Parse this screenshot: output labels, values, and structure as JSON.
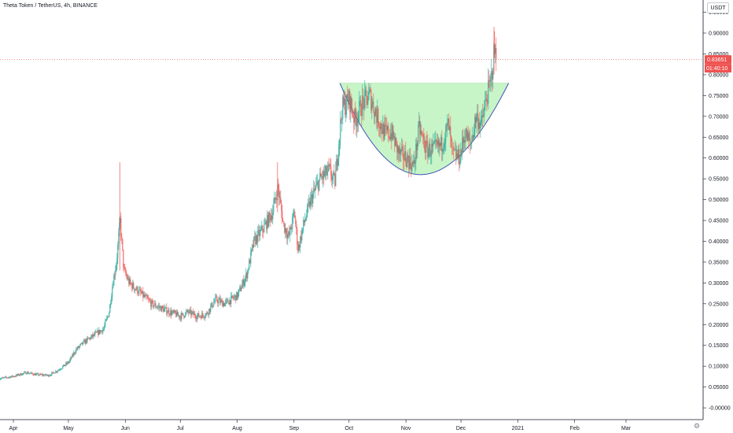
{
  "chart_data": {
    "type": "candlestick",
    "title": "Theta Token / TetherUS, 4h, BINANCE",
    "currency": "USDT",
    "y_ticks": [
      "0.95000",
      "0.90000",
      "0.85000",
      "0.80000",
      "0.75000",
      "0.70000",
      "0.65000",
      "0.60000",
      "0.55000",
      "0.50000",
      "0.45000",
      "0.40000",
      "0.35000",
      "0.30000",
      "0.25000",
      "0.20000",
      "0.15000",
      "0.10000",
      "0.05000",
      "-0.00000"
    ],
    "y_tick_values": [
      0.95,
      0.9,
      0.85,
      0.8,
      0.75,
      0.7,
      0.65,
      0.6,
      0.55,
      0.5,
      0.45,
      0.4,
      0.35,
      0.3,
      0.25,
      0.2,
      0.15,
      0.1,
      0.05,
      0.0
    ],
    "ylim": [
      -0.015,
      0.97
    ],
    "x_ticks": [
      "Apr",
      "May",
      "Jun",
      "Jul",
      "Aug",
      "Sep",
      "Oct",
      "Nov",
      "Dec",
      "2021",
      "Feb",
      "Mar"
    ],
    "x_tick_dates": [
      "2020-04-01",
      "2020-05-01",
      "2020-06-01",
      "2020-07-01",
      "2020-08-01",
      "2020-09-01",
      "2020-10-01",
      "2020-11-01",
      "2020-12-01",
      "2021-01-01",
      "2021-02-01",
      "2021-03-01"
    ],
    "last_price": 0.83651,
    "last_price_label": "0.83651",
    "countdown_label": "01:40:10",
    "price_path": [
      [
        "2020-03-24",
        0.07
      ],
      [
        "2020-04-01",
        0.076
      ],
      [
        "2020-04-08",
        0.085
      ],
      [
        "2020-04-13",
        0.08
      ],
      [
        "2020-04-20",
        0.078
      ],
      [
        "2020-04-25",
        0.09
      ],
      [
        "2020-05-01",
        0.11
      ],
      [
        "2020-05-05",
        0.14
      ],
      [
        "2020-05-10",
        0.16
      ],
      [
        "2020-05-15",
        0.175
      ],
      [
        "2020-05-20",
        0.19
      ],
      [
        "2020-05-23",
        0.23
      ],
      [
        "2020-05-25",
        0.3
      ],
      [
        "2020-05-27",
        0.35
      ],
      [
        "2020-05-29",
        0.45
      ],
      [
        "2020-05-31",
        0.33
      ],
      [
        "2020-06-03",
        0.3
      ],
      [
        "2020-06-08",
        0.28
      ],
      [
        "2020-06-15",
        0.25
      ],
      [
        "2020-06-20",
        0.24
      ],
      [
        "2020-06-25",
        0.23
      ],
      [
        "2020-07-01",
        0.22
      ],
      [
        "2020-07-05",
        0.23
      ],
      [
        "2020-07-10",
        0.22
      ],
      [
        "2020-07-15",
        0.225
      ],
      [
        "2020-07-20",
        0.26
      ],
      [
        "2020-07-25",
        0.25
      ],
      [
        "2020-08-01",
        0.27
      ],
      [
        "2020-08-06",
        0.32
      ],
      [
        "2020-08-10",
        0.4
      ],
      [
        "2020-08-15",
        0.43
      ],
      [
        "2020-08-20",
        0.47
      ],
      [
        "2020-08-23",
        0.53
      ],
      [
        "2020-08-26",
        0.44
      ],
      [
        "2020-08-29",
        0.41
      ],
      [
        "2020-09-01",
        0.47
      ],
      [
        "2020-09-03",
        0.38
      ],
      [
        "2020-09-06",
        0.44
      ],
      [
        "2020-09-10",
        0.5
      ],
      [
        "2020-09-15",
        0.55
      ],
      [
        "2020-09-20",
        0.57
      ],
      [
        "2020-09-23",
        0.54
      ],
      [
        "2020-09-27",
        0.72
      ],
      [
        "2020-10-01",
        0.74
      ],
      [
        "2020-10-04",
        0.69
      ],
      [
        "2020-10-08",
        0.73
      ],
      [
        "2020-10-12",
        0.75
      ],
      [
        "2020-10-16",
        0.7
      ],
      [
        "2020-10-20",
        0.66
      ],
      [
        "2020-10-24",
        0.66
      ],
      [
        "2020-10-28",
        0.61
      ],
      [
        "2020-11-01",
        0.6
      ],
      [
        "2020-11-05",
        0.58
      ],
      [
        "2020-11-08",
        0.67
      ],
      [
        "2020-11-12",
        0.62
      ],
      [
        "2020-11-16",
        0.62
      ],
      [
        "2020-11-20",
        0.63
      ],
      [
        "2020-11-24",
        0.68
      ],
      [
        "2020-11-26",
        0.61
      ],
      [
        "2020-11-30",
        0.6
      ],
      [
        "2020-12-03",
        0.66
      ],
      [
        "2020-12-06",
        0.63
      ],
      [
        "2020-12-09",
        0.7
      ],
      [
        "2020-12-12",
        0.68
      ],
      [
        "2020-12-15",
        0.75
      ],
      [
        "2020-12-17",
        0.78
      ],
      [
        "2020-12-19",
        0.86
      ],
      [
        "2020-12-20",
        0.84
      ]
    ],
    "pattern": {
      "type": "cup",
      "start": [
        "2020-09-26",
        0.78
      ],
      "bottom": [
        "2020-11-09",
        0.56
      ],
      "end": [
        "2020-12-27",
        0.78
      ]
    },
    "colors": {
      "up": "#26a69a",
      "down": "#ef5350",
      "pattern_fill": "#c8f5c8",
      "pattern_line": "#3f51b5",
      "last_price_line": "#ef5350",
      "axis": "#131722"
    }
  }
}
